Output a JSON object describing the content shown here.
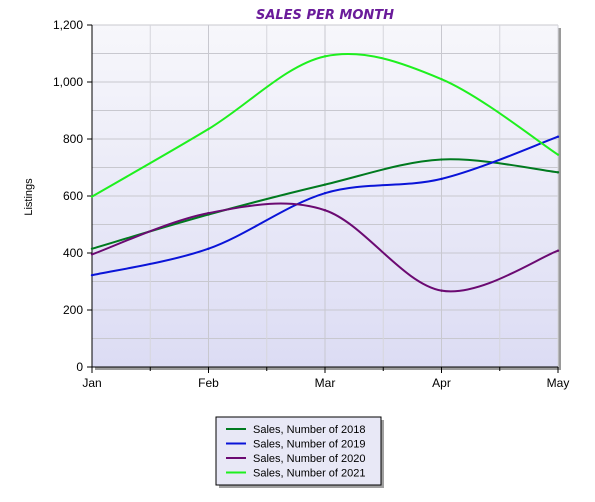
{
  "chart_data": {
    "type": "line",
    "title": "SALES PER MONTH",
    "xlabel": "",
    "ylabel": "Listings",
    "categories": [
      "Jan",
      "Feb",
      "Mar",
      "Apr",
      "May"
    ],
    "ylim": [
      0,
      1200
    ],
    "yticks": [
      0,
      200,
      400,
      600,
      800,
      1000,
      1200
    ],
    "ytick_labels": [
      "0",
      "200",
      "400",
      "600",
      "800",
      "1,000",
      "1,200"
    ],
    "grid": true,
    "smooth": true,
    "legend_position": "bottom",
    "background_gradient": [
      "#f7f7fb",
      "#dcdcf4"
    ],
    "series": [
      {
        "name": "Sales, Number of 2018",
        "color": "#007a1f",
        "values": [
          415,
          535,
          640,
          728,
          683
        ]
      },
      {
        "name": "Sales, Number of 2019",
        "color": "#0a14d8",
        "values": [
          322,
          415,
          610,
          660,
          808
        ]
      },
      {
        "name": "Sales, Number of 2020",
        "color": "#6b0a72",
        "values": [
          395,
          540,
          550,
          268,
          408
        ]
      },
      {
        "name": "Sales, Number of 2021",
        "color": "#1ef01e",
        "values": [
          598,
          835,
          1090,
          1010,
          745
        ]
      }
    ]
  }
}
